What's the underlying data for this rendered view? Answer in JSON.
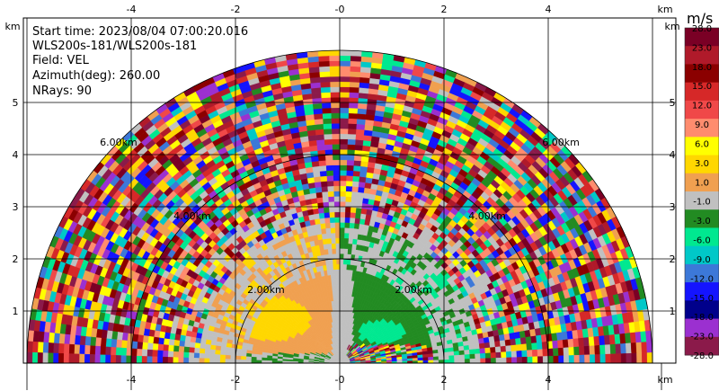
{
  "info": {
    "start_time": "Start time: 2023/08/04 07:00:20.016",
    "site": "WLS200s-181/WLS200s-181",
    "field": "Field: VEL",
    "azimuth": "Azimuth(deg): 260.00",
    "nrays": "NRays: 90"
  },
  "axes": {
    "x_unit": "km",
    "y_unit": "km",
    "x_ticks": [
      "-4",
      "-2",
      "-0",
      "2",
      "4"
    ],
    "y_ticks": [
      "1",
      "2",
      "3",
      "4",
      "5"
    ]
  },
  "colorbar": {
    "unit": "m/s",
    "labels": [
      "28.0",
      "23.0",
      "18.0",
      "15.0",
      "12.0",
      "9.0",
      "6.0",
      "3.0",
      "1.0",
      "-1.0",
      "-3.0",
      "-6.0",
      "-9.0",
      "-12.0",
      "-15.0",
      "-18.0",
      "-23.0",
      "-28.0"
    ],
    "colors": [
      "#7a0025",
      "#b01a2a",
      "#8b0000",
      "#d62828",
      "#f04848",
      "#ff8c6e",
      "#ffff00",
      "#ffd700",
      "#f0a050",
      "#c0c0c0",
      "#228b22",
      "#00e890",
      "#00c8c8",
      "#3c78d8",
      "#1414ff",
      "#00008b",
      "#9b30d0",
      "#8b1a4a"
    ]
  },
  "chart_data": {
    "type": "heatmap",
    "title": "",
    "xlabel": "km",
    "ylabel": "km",
    "xlim": [
      -6.0,
      6.0
    ],
    "ylim": [
      0,
      6.0
    ],
    "ring_labels": [
      "2.00km",
      "4.00km",
      "6.00km"
    ],
    "ring_ranges_km": [
      2,
      4,
      6
    ],
    "max_range_km": 6.0,
    "colorbar_range": [
      -28.0,
      28.0
    ],
    "field": "VEL",
    "nrays": 90,
    "regions": [
      {
        "description": "near-range west",
        "color": "#ffd700",
        "value_approx": 3.0
      },
      {
        "description": "near-range west outer",
        "color": "#f0a050",
        "value_approx": 1.0
      },
      {
        "description": "near-range east",
        "color": "#228b22",
        "value_approx": -3.0
      },
      {
        "description": "near-range east core",
        "color": "#00e890",
        "value_approx": -6.0
      },
      {
        "description": "center",
        "color": "#c0c0c0",
        "value_approx": 0.0
      }
    ]
  }
}
